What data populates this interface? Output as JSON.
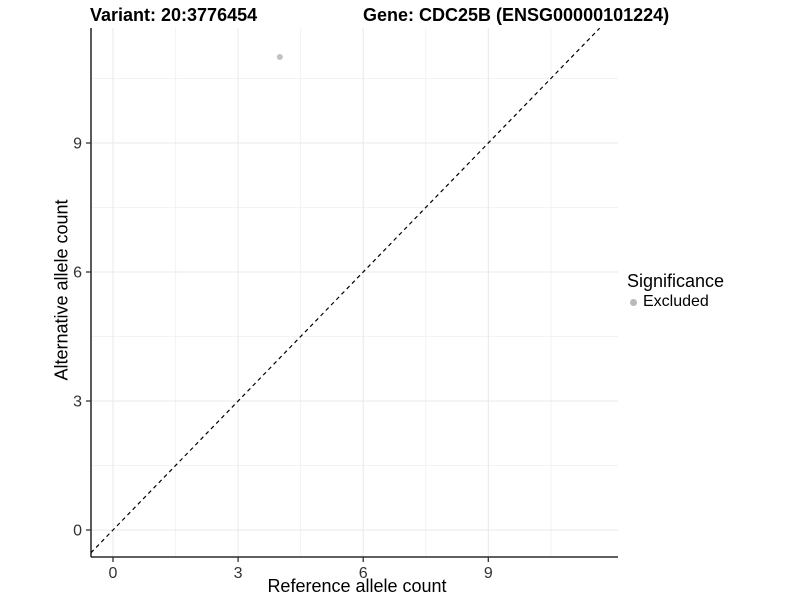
{
  "chart_data": {
    "type": "scatter",
    "titles": {
      "left": "Variant: 20:3776454",
      "right": "Gene: CDC25B (ENSG00000101224)"
    },
    "xlabel": "Reference allele count",
    "ylabel": "Alternative allele count",
    "x_ticks": [
      0,
      3,
      6,
      9
    ],
    "y_ticks": [
      0,
      3,
      6,
      9
    ],
    "x_minor_ticks": [
      1.5,
      4.5,
      7.5,
      10.5
    ],
    "y_minor_ticks": [
      1.5,
      4.5,
      7.5,
      10.5
    ],
    "xlim": [
      -0.53,
      12.11
    ],
    "ylim": [
      -0.63,
      11.67
    ],
    "grid": true,
    "points": [
      {
        "x": 4,
        "y": 11,
        "series": "Excluded"
      }
    ],
    "abline": {
      "slope": 1,
      "intercept": 0,
      "style": "dashed"
    },
    "legend": {
      "position": "right",
      "title": "Significance",
      "items": [
        {
          "label": "Excluded",
          "color": "#BEBEBE"
        }
      ]
    },
    "colors": {
      "point": "#C2C2C2",
      "legend_dot": "#B9B9B9",
      "grid_major": "#E8E8E8",
      "grid_minor": "#F3F3F3",
      "axis_line": "#000000",
      "abline": "#000000",
      "tick_mark": "#333333",
      "tick_text": "#333333",
      "background": "#FFFFFF"
    }
  }
}
